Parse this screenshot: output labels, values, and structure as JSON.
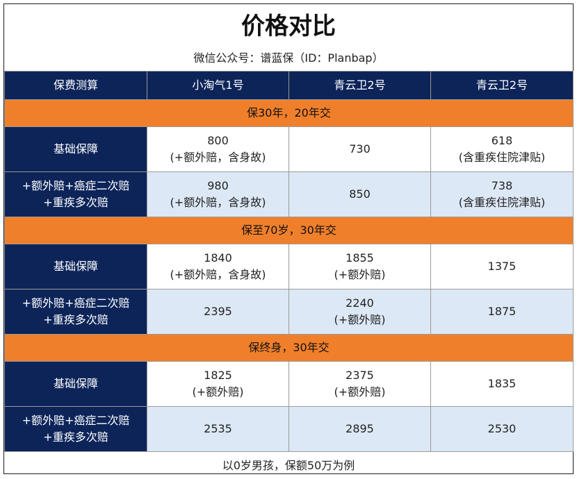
{
  "title": "价格对比",
  "subtitle": "微信公众号：谱蓝保（ID：Planbap）",
  "header": [
    "保费测算",
    "小淘气1号",
    "青云卫2号",
    "青云卫2号"
  ],
  "sections": [
    {
      "label": "保30年，20年交",
      "rows": [
        {
          "label": [
            "基础保障"
          ],
          "cells": [
            [
              "800",
              "(+额外赔，含身故)"
            ],
            [
              "730"
            ],
            [
              "618",
              "(含重疾住院津贴)"
            ]
          ]
        },
        {
          "label": [
            "+额外赔+癌症二次赔",
            "+重疾多次赔"
          ],
          "cells": [
            [
              "980",
              "(+额外赔，含身故)"
            ],
            [
              "850"
            ],
            [
              "738",
              "(含重疾住院津贴)"
            ]
          ]
        }
      ]
    },
    {
      "label": "保至70岁，30年交",
      "rows": [
        {
          "label": [
            "基础保障"
          ],
          "cells": [
            [
              "1840",
              "(+额外赔，含身故)"
            ],
            [
              "1855",
              "(+额外赔)"
            ],
            [
              "1375"
            ]
          ]
        },
        {
          "label": [
            "+额外赔+癌症二次赔",
            "+重疾多次赔"
          ],
          "cells": [
            [
              "2395"
            ],
            [
              "2240",
              "(+额外赔)"
            ],
            [
              "1875"
            ]
          ]
        }
      ]
    },
    {
      "label": "保终身，30年交",
      "rows": [
        {
          "label": [
            "基础保障"
          ],
          "cells": [
            [
              "1825",
              "(+额外赔)"
            ],
            [
              "2375",
              "(+额外赔)"
            ],
            [
              "1835"
            ]
          ]
        },
        {
          "label": [
            "+额外赔+癌症二次赔",
            "+重疾多次赔"
          ],
          "cells": [
            [
              "2535"
            ],
            [
              "2895"
            ],
            [
              "2530"
            ]
          ]
        }
      ]
    }
  ],
  "footnote": "以0岁男孩，保额50万为例",
  "colors": {
    "navy": "#0d2459",
    "orange": "#f07f2b",
    "light_blue": "#dce8f5"
  }
}
